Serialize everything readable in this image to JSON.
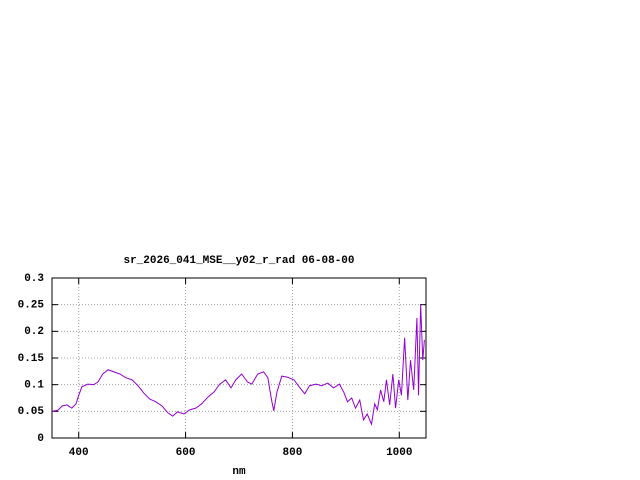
{
  "chart_data": {
    "type": "line",
    "title": "sr_2026_041_MSE__y02_r_rad 06-08-00",
    "x_label": "nm",
    "x": [
      350,
      361,
      369,
      378,
      387,
      395,
      400,
      406,
      417,
      428,
      436,
      445,
      455,
      466,
      477,
      488,
      500,
      511,
      522,
      533,
      544,
      556,
      567,
      576,
      585,
      597,
      608,
      619,
      630,
      642,
      653,
      664,
      675,
      685,
      694,
      705,
      716,
      724,
      735,
      746,
      754,
      761,
      765,
      771,
      780,
      791,
      803,
      814,
      823,
      832,
      844,
      855,
      866,
      877,
      888,
      896,
      903,
      911,
      918,
      926,
      933,
      940,
      948,
      954,
      959,
      965,
      971,
      976,
      982,
      988,
      993,
      999,
      1004,
      1010,
      1016,
      1021,
      1027,
      1033,
      1036,
      1040,
      1044,
      1047
    ],
    "values": [
      0.05,
      0.052,
      0.06,
      0.062,
      0.056,
      0.064,
      0.08,
      0.096,
      0.101,
      0.1,
      0.105,
      0.12,
      0.128,
      0.124,
      0.12,
      0.113,
      0.109,
      0.098,
      0.084,
      0.073,
      0.068,
      0.06,
      0.047,
      0.041,
      0.049,
      0.045,
      0.053,
      0.056,
      0.064,
      0.077,
      0.086,
      0.101,
      0.109,
      0.094,
      0.109,
      0.12,
      0.105,
      0.101,
      0.12,
      0.124,
      0.113,
      0.071,
      0.051,
      0.086,
      0.116,
      0.114,
      0.109,
      0.094,
      0.083,
      0.098,
      0.101,
      0.098,
      0.103,
      0.094,
      0.101,
      0.086,
      0.068,
      0.075,
      0.056,
      0.071,
      0.034,
      0.045,
      0.026,
      0.064,
      0.053,
      0.09,
      0.068,
      0.109,
      0.062,
      0.12,
      0.056,
      0.109,
      0.08,
      0.188,
      0.071,
      0.146,
      0.09,
      0.225,
      0.08,
      0.25,
      0.146,
      0.184
    ],
    "color": "#9400d3",
    "xlim": [
      350,
      1050
    ],
    "xticks": [
      400,
      600,
      800,
      1000
    ],
    "ylim": [
      0,
      0.3
    ],
    "yticks": [
      0,
      0.05,
      0.1,
      0.15,
      0.2,
      0.25,
      0.3
    ],
    "grid": true
  }
}
